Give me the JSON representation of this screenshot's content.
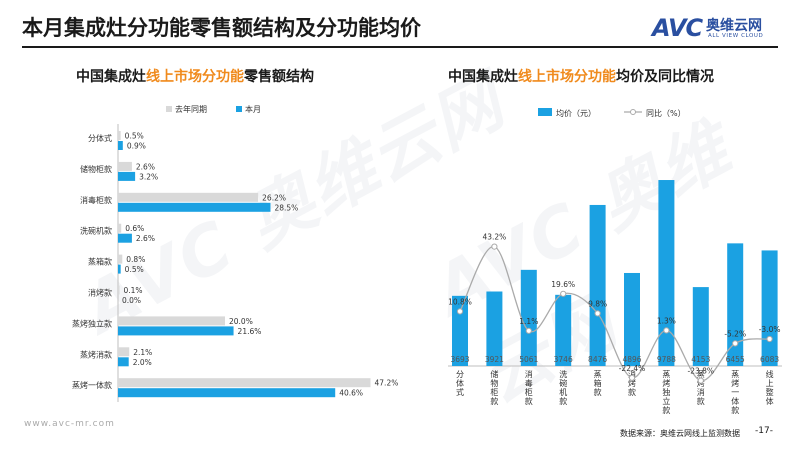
{
  "page": {
    "title": "本月集成灶分功能零售额结构及分功能均价",
    "logo_cn": "奥维云网",
    "logo_en": "ALL VIEW CLOUD",
    "logo_mark": "AVC",
    "watermark": "AVC 奥维云网",
    "watermark_en": "ALL VIEW CLOUD",
    "footer_url": "www.avc-mr.com",
    "source": "数据来源：奥维云网线上监测数据",
    "page_number": "-17-"
  },
  "colors": {
    "blue": "#1ba1e2",
    "gray": "#d9d9d9",
    "orange": "#f08a1c",
    "line": "#aaaaaa"
  },
  "left_chart": {
    "title_pre": "中国集成灶",
    "title_hl": "线上市场分功能",
    "title_post": "零售额结构"
  },
  "right_chart": {
    "title_pre": "中国集成灶",
    "title_hl": "线上市场分功能",
    "title_post": "均价及同比情况"
  },
  "chart_data": [
    {
      "type": "bar",
      "orientation": "horizontal",
      "categories": [
        "分体式",
        "储物柜款",
        "消毒柜款",
        "洗碗机款",
        "蒸箱款",
        "消烤款",
        "蒸烤独立款",
        "蒸烤消款",
        "蒸烤一体款"
      ],
      "series": [
        {
          "name": "去年同期",
          "values": [
            0.5,
            2.6,
            26.2,
            0.6,
            0.8,
            0.1,
            20.0,
            2.1,
            47.2
          ],
          "labels": [
            "0.5%",
            "2.6%",
            "26.2%",
            "0.6%",
            "0.8%",
            "0.1%",
            "20.0%",
            "2.1%",
            "47.2%"
          ]
        },
        {
          "name": "本月",
          "values": [
            0.9,
            3.2,
            28.5,
            2.6,
            0.5,
            0.0,
            21.6,
            2.0,
            40.6
          ],
          "labels": [
            "0.9%",
            "3.2%",
            "28.5%",
            "2.6%",
            "0.5%",
            "0.0%",
            "21.6%",
            "2.0%",
            "40.6%"
          ]
        }
      ],
      "xlim": [
        0,
        50
      ],
      "legend": "top"
    },
    {
      "type": "bar+line",
      "categories": [
        "分体式",
        "储物柜款",
        "消毒柜款",
        "洗碗机款",
        "蒸箱款",
        "消烤款",
        "蒸烤独立款",
        "蒸烤消款",
        "蒸烤一体款",
        "线上整体"
      ],
      "series": [
        {
          "name": "均价（元）",
          "type": "bar",
          "values": [
            3693,
            3921,
            5061,
            3746,
            8476,
            4896,
            9788,
            4153,
            6455,
            6083
          ]
        },
        {
          "name": "同比（%）",
          "type": "line",
          "values": [
            10.8,
            43.2,
            1.1,
            19.6,
            9.8,
            -22.4,
            1.3,
            -23.8,
            -5.2,
            -3.0
          ],
          "labels": [
            "10.8%",
            "43.2%",
            "1.1%",
            "19.6%",
            "9.8%",
            "-22.4%",
            "1.3%",
            "-23.8%",
            "-5.2%",
            "-3.0%"
          ]
        }
      ],
      "legend": "top"
    }
  ]
}
